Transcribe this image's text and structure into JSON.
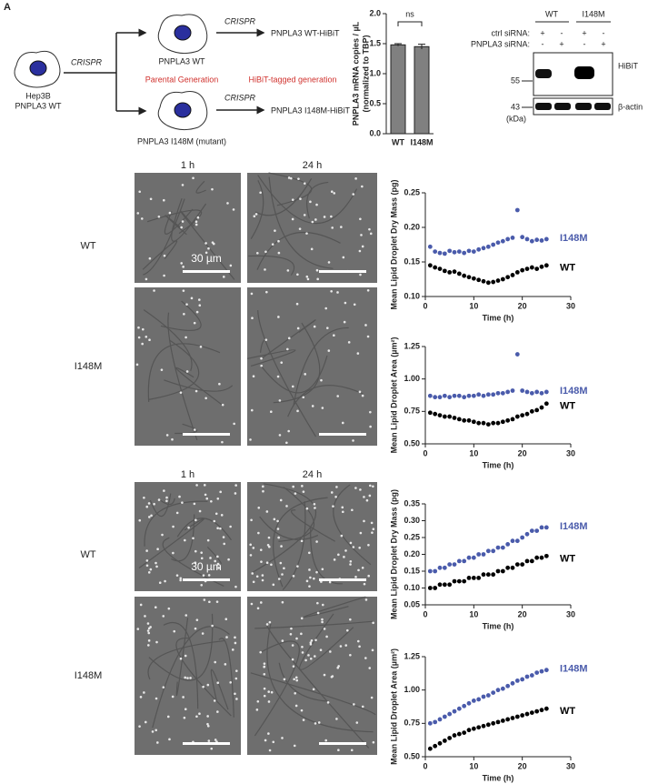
{
  "panel_labels": [
    "A"
  ],
  "diagram": {
    "parent": {
      "line1": "Hep3B",
      "line2": "PNPLA3 WT"
    },
    "crispr_labels": [
      "CRISPR",
      "CRISPR",
      "CRISPR"
    ],
    "wt_cell": "PNPLA3 WT",
    "mutant_cell": "PNPLA3 I148M (mutant)",
    "parental_label": "Parental Generation",
    "hibit_label": "HiBiT-tagged generation",
    "wt_hibit": "PNPLA3 WT-HiBiT",
    "mutant_hibit": "PNPLA3 I148M-HiBiT"
  },
  "western_blot": {
    "groups": [
      "WT",
      "I148M"
    ],
    "rows": [
      {
        "label": "ctrl siRNA:",
        "signs": [
          "+",
          "-",
          "+",
          "-"
        ]
      },
      {
        "label": "PNPLA3 siRNA:",
        "signs": [
          "-",
          "+",
          "-",
          "+"
        ]
      }
    ],
    "bands": [
      "HiBiT",
      "β-actin"
    ],
    "markers": [
      55,
      43
    ],
    "unit": "(kDa)"
  },
  "imaging": [
    {
      "columns": [
        "1 h",
        "24 h"
      ],
      "rows": [
        "WT",
        "I148M"
      ],
      "scale_bar": "30 µm"
    },
    {
      "columns": [
        "1 h",
        "24 h"
      ],
      "rows": [
        "WT",
        "I148M"
      ],
      "scale_bar": "30 µm"
    }
  ],
  "chart_data": [
    {
      "type": "bar",
      "ylabel": [
        "PNPLA3 mRNA copies / µL",
        "(normalized to TBP)"
      ],
      "categories": [
        "WT",
        "I148M"
      ],
      "values": [
        1.48,
        1.45
      ],
      "errors": [
        0.02,
        0.04
      ],
      "color": "#808080",
      "annotation": "ns",
      "ylim": [
        0,
        2
      ],
      "yticks": [
        {
          "value": 0,
          "label": "0.0"
        },
        0.5,
        {
          "value": 1,
          "label": "1.0"
        },
        1.5,
        {
          "value": 2,
          "label": "2.0"
        }
      ]
    },
    {
      "type": "scatter",
      "ylabel": "Mean Lipid Droplet Dry Mass (pg)",
      "xlabel": "Time (h)",
      "xlim": [
        0,
        30
      ],
      "xticks": [
        0,
        10,
        20,
        30
      ],
      "ylim": [
        0.1,
        0.25
      ],
      "yticks": [
        {
          "value": 0.1,
          "label": "0.10"
        },
        0.15,
        {
          "value": 0.2,
          "label": "0.20"
        },
        0.25
      ],
      "x": [
        1,
        2,
        3,
        4,
        5,
        6,
        7,
        8,
        9,
        10,
        11,
        12,
        13,
        14,
        15,
        16,
        17,
        18,
        19,
        20,
        21,
        22,
        23,
        24,
        25
      ],
      "series": [
        {
          "name": "I148M",
          "color": "#4a5bab",
          "values": [
            0.172,
            0.165,
            0.163,
            0.162,
            0.166,
            0.164,
            0.165,
            0.163,
            0.166,
            0.165,
            0.168,
            0.17,
            0.172,
            0.175,
            0.178,
            0.18,
            0.183,
            0.185,
            0.225,
            0.186,
            0.183,
            0.18,
            0.182,
            0.181,
            0.183
          ]
        },
        {
          "name": "WT",
          "color": "#000000",
          "values": [
            0.145,
            0.142,
            0.14,
            0.137,
            0.135,
            0.136,
            0.133,
            0.13,
            0.128,
            0.126,
            0.124,
            0.122,
            0.12,
            0.121,
            0.123,
            0.125,
            0.128,
            0.131,
            0.135,
            0.138,
            0.14,
            0.142,
            0.14,
            0.143,
            0.145
          ]
        }
      ]
    },
    {
      "type": "scatter",
      "ylabel": "Mean Lipid Droplet Area (µm²)",
      "xlabel": "Time (h)",
      "xlim": [
        0,
        30
      ],
      "xticks": [
        0,
        10,
        20,
        30
      ],
      "ylim": [
        0.5,
        1.25
      ],
      "yticks": [
        {
          "value": 0.5,
          "label": "0.50"
        },
        0.75,
        {
          "value": 1,
          "label": "1.00"
        },
        1.25
      ],
      "x": [
        1,
        2,
        3,
        4,
        5,
        6,
        7,
        8,
        9,
        10,
        11,
        12,
        13,
        14,
        15,
        16,
        17,
        18,
        19,
        20,
        21,
        22,
        23,
        24,
        25
      ],
      "series": [
        {
          "name": "I148M",
          "color": "#4a5bab",
          "values": [
            0.87,
            0.86,
            0.86,
            0.87,
            0.86,
            0.87,
            0.87,
            0.86,
            0.87,
            0.87,
            0.88,
            0.87,
            0.88,
            0.88,
            0.89,
            0.89,
            0.9,
            0.91,
            1.19,
            0.91,
            0.9,
            0.89,
            0.9,
            0.89,
            0.9
          ]
        },
        {
          "name": "WT",
          "color": "#000000",
          "values": [
            0.74,
            0.73,
            0.72,
            0.71,
            0.71,
            0.7,
            0.69,
            0.68,
            0.68,
            0.67,
            0.66,
            0.66,
            0.65,
            0.66,
            0.66,
            0.67,
            0.68,
            0.69,
            0.71,
            0.72,
            0.73,
            0.75,
            0.76,
            0.78,
            0.81
          ]
        }
      ]
    },
    {
      "type": "scatter",
      "ylabel": "Mean Lipid Droplet Dry Mass (pg)",
      "xlabel": "Time (h)",
      "xlim": [
        0,
        30
      ],
      "xticks": [
        0,
        10,
        20,
        30
      ],
      "ylim": [
        0.05,
        0.35
      ],
      "yticks": [
        0.05,
        {
          "value": 0.1,
          "label": "0.10"
        },
        0.15,
        {
          "value": 0.2,
          "label": "0.20"
        },
        0.25,
        {
          "value": 0.3,
          "label": "0.30"
        },
        0.35
      ],
      "x": [
        1,
        2,
        3,
        4,
        5,
        6,
        7,
        8,
        9,
        10,
        11,
        12,
        13,
        14,
        15,
        16,
        17,
        18,
        19,
        20,
        21,
        22,
        23,
        24,
        25
      ],
      "series": [
        {
          "name": "I148M",
          "color": "#4a5bab",
          "values": [
            0.15,
            0.15,
            0.16,
            0.16,
            0.17,
            0.17,
            0.18,
            0.18,
            0.19,
            0.19,
            0.2,
            0.2,
            0.21,
            0.21,
            0.22,
            0.22,
            0.23,
            0.24,
            0.24,
            0.25,
            0.26,
            0.27,
            0.27,
            0.28,
            0.28
          ]
        },
        {
          "name": "WT",
          "color": "#000000",
          "values": [
            0.1,
            0.1,
            0.11,
            0.11,
            0.11,
            0.12,
            0.12,
            0.12,
            0.13,
            0.13,
            0.13,
            0.14,
            0.14,
            0.14,
            0.15,
            0.15,
            0.16,
            0.16,
            0.17,
            0.17,
            0.18,
            0.18,
            0.19,
            0.19,
            0.195
          ]
        }
      ]
    },
    {
      "type": "scatter",
      "ylabel": "Mean Lipid Droplet Area (µm²)",
      "xlabel": "Time (h)",
      "xlim": [
        0,
        30
      ],
      "xticks": [
        0,
        10,
        20,
        30
      ],
      "ylim": [
        0.5,
        1.25
      ],
      "yticks": [
        {
          "value": 0.5,
          "label": "0.50"
        },
        0.75,
        {
          "value": 1,
          "label": "1.00"
        },
        1.25
      ],
      "x": [
        1,
        2,
        3,
        4,
        5,
        6,
        7,
        8,
        9,
        10,
        11,
        12,
        13,
        14,
        15,
        16,
        17,
        18,
        19,
        20,
        21,
        22,
        23,
        24,
        25
      ],
      "series": [
        {
          "name": "I148M",
          "color": "#4a5bab",
          "values": [
            0.75,
            0.76,
            0.78,
            0.8,
            0.82,
            0.84,
            0.86,
            0.88,
            0.9,
            0.92,
            0.93,
            0.95,
            0.96,
            0.98,
            1,
            1.01,
            1.03,
            1.05,
            1.07,
            1.08,
            1.1,
            1.11,
            1.13,
            1.14,
            1.15
          ]
        },
        {
          "name": "WT",
          "color": "#000000",
          "values": [
            0.56,
            0.58,
            0.6,
            0.62,
            0.64,
            0.66,
            0.67,
            0.68,
            0.7,
            0.71,
            0.72,
            0.73,
            0.74,
            0.75,
            0.76,
            0.77,
            0.78,
            0.79,
            0.8,
            0.81,
            0.82,
            0.83,
            0.84,
            0.85,
            0.86
          ]
        }
      ]
    }
  ]
}
